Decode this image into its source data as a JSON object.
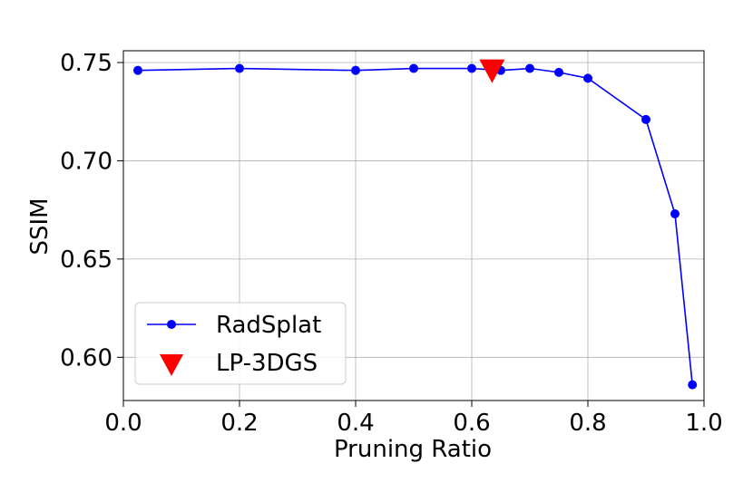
{
  "chart_data": {
    "type": "line",
    "xlabel": "Pruning Ratio",
    "ylabel": "SSIM",
    "xlim": [
      0.0,
      1.0
    ],
    "ylim": [
      0.578,
      0.756
    ],
    "xticks": [
      "0.0",
      "0.2",
      "0.4",
      "0.6",
      "0.8",
      "1.0"
    ],
    "yticks": [
      "0.60",
      "0.65",
      "0.70",
      "0.75"
    ],
    "grid": true,
    "legend_position": "bottom-left",
    "series": [
      {
        "name": "RadSplat",
        "kind": "line-with-circle-markers",
        "color": "#0000ff",
        "x": [
          0.025,
          0.2,
          0.4,
          0.5,
          0.6,
          0.65,
          0.7,
          0.75,
          0.8,
          0.9,
          0.95,
          0.98
        ],
        "y": [
          0.746,
          0.747,
          0.746,
          0.747,
          0.747,
          0.746,
          0.747,
          0.745,
          0.742,
          0.721,
          0.673,
          0.586
        ]
      },
      {
        "name": "LP-3DGS",
        "kind": "triangle-down-marker",
        "color": "#ff0000",
        "x": [
          0.635
        ],
        "y": [
          0.746
        ]
      }
    ]
  }
}
